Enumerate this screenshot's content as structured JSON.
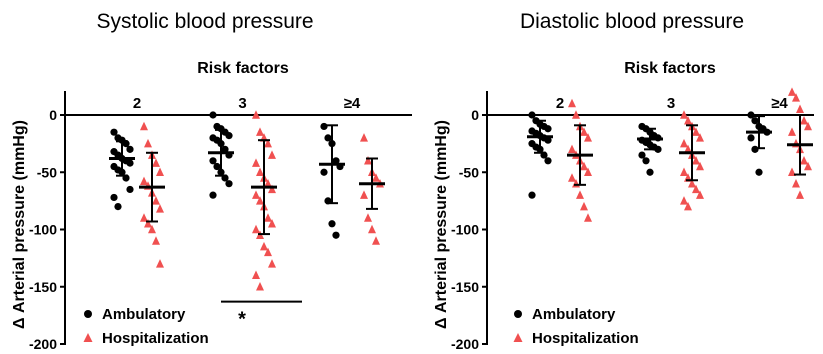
{
  "chart_data": [
    {
      "type": "scatter",
      "title": "Systolic blood pressure",
      "subtitle": "Risk factors",
      "ylabel": "Δ Arterial pressure (mmHg)",
      "ylim": [
        -200,
        0
      ],
      "yticks": [
        "0",
        "-50",
        "-100",
        "-150",
        "-200"
      ],
      "categories": [
        "2",
        "3",
        "≥4"
      ],
      "annotation": "*",
      "legend": "bottom-left",
      "series": [
        {
          "name": "Ambulatory",
          "color": "#000000",
          "marker": "circle",
          "mean": [
            -38,
            -33,
            -43
          ],
          "sd": [
            15,
            20,
            34
          ],
          "points": [
            [
              -15,
              -20,
              -22,
              -25,
              -30,
              -32,
              -35,
              -38,
              -40,
              -42,
              -45,
              -48,
              -50,
              -55,
              -65,
              -72,
              -80
            ],
            [
              0,
              -10,
              -12,
              -15,
              -18,
              -20,
              -22,
              -25,
              -30,
              -35,
              -40,
              -45,
              -50,
              -55,
              -60,
              -70
            ],
            [
              -10,
              -20,
              -25,
              -40,
              -45,
              -50,
              -75,
              -95,
              -105
            ]
          ]
        },
        {
          "name": "Hospitalization",
          "color": "#f05050",
          "marker": "triangle",
          "mean": [
            -63,
            -63,
            -60
          ],
          "sd": [
            30,
            41,
            22
          ],
          "points": [
            [
              -10,
              -25,
              -35,
              -42,
              -50,
              -58,
              -62,
              -68,
              -75,
              -82,
              -90,
              -95,
              -100,
              -110,
              -130
            ],
            [
              0,
              -15,
              -20,
              -25,
              -35,
              -42,
              -50,
              -55,
              -60,
              -65,
              -70,
              -75,
              -80,
              -90,
              -95,
              -100,
              -105,
              -115,
              -120,
              -130,
              -140,
              -150
            ],
            [
              -20,
              -40,
              -50,
              -55,
              -60,
              -70,
              -90,
              -100,
              -110
            ]
          ]
        }
      ]
    },
    {
      "type": "scatter",
      "title": "Diastolic blood pressure",
      "subtitle": "Risk factors",
      "ylabel": "Δ Arterial pressure (mmHg)",
      "ylim": [
        -200,
        0
      ],
      "yticks": [
        "0",
        "-50",
        "-100",
        "-150",
        "-200"
      ],
      "categories": [
        "2",
        "3",
        "≥4"
      ],
      "legend": "bottom-left",
      "series": [
        {
          "name": "Ambulatory",
          "color": "#000000",
          "marker": "circle",
          "mean": [
            -19,
            -21,
            -15
          ],
          "sd": [
            14,
            9,
            14
          ],
          "points": [
            [
              0,
              -5,
              -8,
              -10,
              -12,
              -14,
              -16,
              -18,
              -20,
              -22,
              -25,
              -28,
              -30,
              -35,
              -40,
              -70
            ],
            [
              -10,
              -12,
              -15,
              -18,
              -20,
              -22,
              -24,
              -26,
              -28,
              -30,
              -35,
              -40,
              -50
            ],
            [
              0,
              -5,
              -10,
              -12,
              -15,
              -20,
              -30,
              -50
            ]
          ]
        },
        {
          "name": "Hospitalization",
          "color": "#f05050",
          "marker": "triangle",
          "mean": [
            -35,
            -33,
            -26
          ],
          "sd": [
            26,
            24,
            26
          ],
          "points": [
            [
              10,
              0,
              -10,
              -15,
              -20,
              -30,
              -35,
              -40,
              -45,
              -50,
              -55,
              -60,
              -70,
              -80,
              -90
            ],
            [
              0,
              -5,
              -10,
              -15,
              -20,
              -25,
              -30,
              -35,
              -40,
              -45,
              -50,
              -55,
              -60,
              -65,
              -70,
              -75,
              -80
            ],
            [
              20,
              15,
              5,
              -5,
              -10,
              -15,
              -25,
              -30,
              -40,
              -45,
              -50,
              -60,
              -70
            ]
          ]
        }
      ]
    }
  ]
}
